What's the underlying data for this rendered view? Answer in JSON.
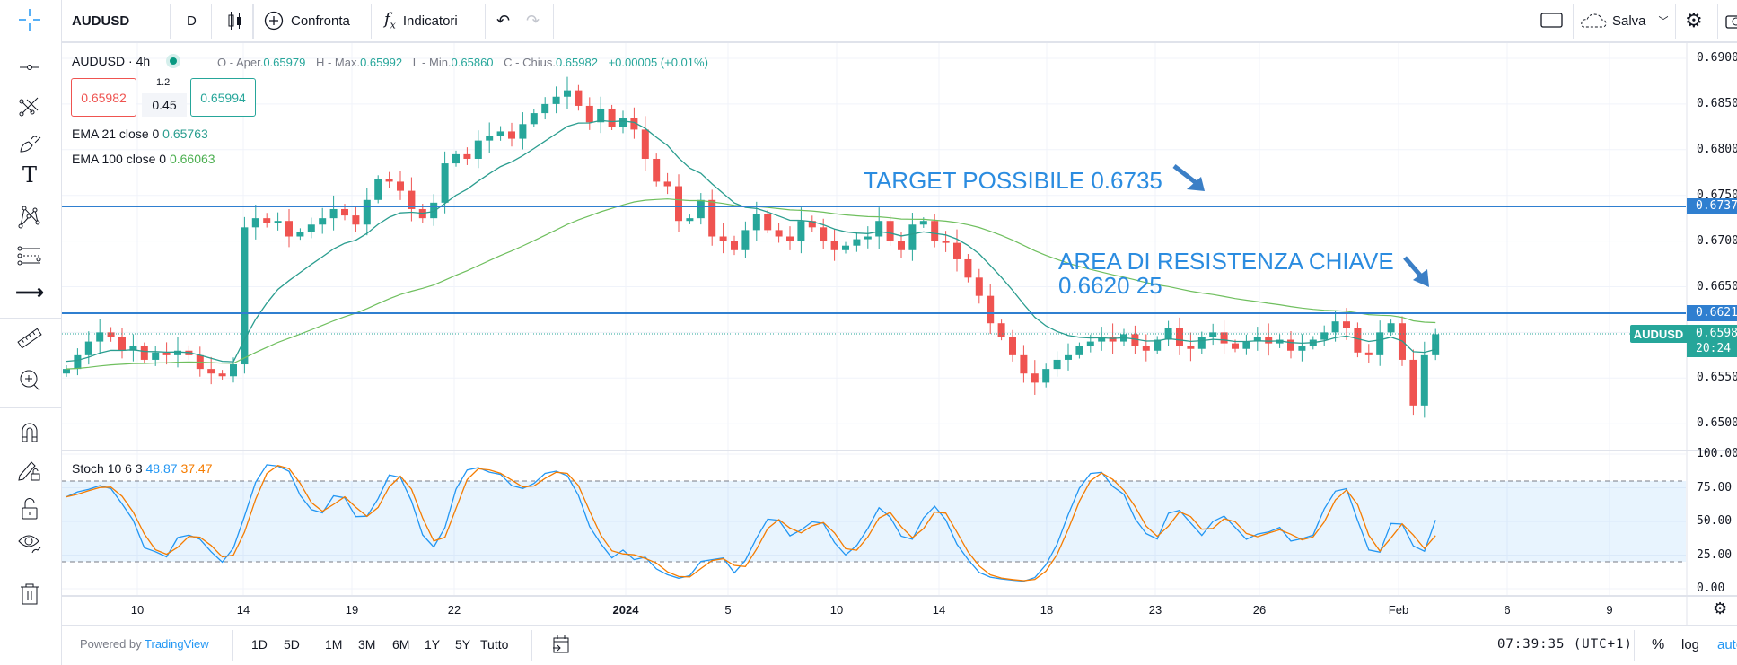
{
  "toolbar": {
    "symbol": "AUDUSD",
    "interval": "D",
    "compare": "Confronta",
    "indicators": "Indicatori",
    "save": "Salva"
  },
  "legend": {
    "symbol": "AUDUSD",
    "sep": "·",
    "timeframe": "4h",
    "o_label": "O - Aper.",
    "o": "0.65979",
    "h_label": "H - Max.",
    "h": "0.65992",
    "l_label": "L - Min.",
    "l": "0.65860",
    "c_label": "C - Chius.",
    "c": "0.65982",
    "change": "+0.00005 (+0.01%)",
    "sell": "0.65982",
    "spread_top": "1.2",
    "spread": "0.45",
    "buy": "0.65994",
    "ema21_label": "EMA 21 close 0",
    "ema21": "0.65763",
    "ema100_label": "EMA 100 close 0",
    "ema100": "0.66063"
  },
  "stoch": {
    "label": "Stoch 10 6 3",
    "k": "48.87",
    "d": "37.47"
  },
  "annotations": {
    "target": "TARGET POSSIBILE 0.6735",
    "resistance_line1": "AREA DI RESISTENZA CHIAVE",
    "resistance_line2": "0.6620 25"
  },
  "price_axis": {
    "ticks": [
      "0.6900",
      "0.6850",
      "0.6800",
      "0.6750",
      "0.6700",
      "0.6650",
      "0.6550",
      "0.6500"
    ],
    "line_target": "0.6737",
    "line_resistance": "0.6621",
    "symbol_tag": "AUDUSD",
    "last_price": "0.6598",
    "countdown": "20:24"
  },
  "stoch_axis": [
    "100.00",
    "75.00",
    "50.00",
    "25.00",
    "0.00"
  ],
  "time_axis": [
    "10",
    "14",
    "19",
    "22",
    "2024",
    "5",
    "10",
    "14",
    "18",
    "23",
    "26",
    "Feb",
    "6",
    "9"
  ],
  "bottom": {
    "powered": "Powered by",
    "brand": "TradingView",
    "ranges": [
      "1D",
      "5D",
      "1M",
      "3M",
      "6M",
      "1Y",
      "5Y",
      "Tutto"
    ],
    "clock": "07:39:35 (UTC+1)",
    "percent": "%",
    "log": "log",
    "auto": "auto"
  },
  "chart_data": {
    "type": "candlestick",
    "symbol": "AUDUSD",
    "interval": "4h",
    "price_range": [
      0.6478,
      0.6905
    ],
    "first_open": 0.6555,
    "closes": [
      0.656,
      0.6575,
      0.659,
      0.66,
      0.6595,
      0.658,
      0.6585,
      0.657,
      0.6578,
      0.6575,
      0.658,
      0.6575,
      0.656,
      0.6555,
      0.6552,
      0.6565,
      0.6715,
      0.6725,
      0.672,
      0.6722,
      0.6705,
      0.671,
      0.6718,
      0.6725,
      0.6735,
      0.6728,
      0.6718,
      0.6745,
      0.6768,
      0.6765,
      0.6755,
      0.6735,
      0.6725,
      0.6742,
      0.6785,
      0.6795,
      0.679,
      0.681,
      0.6815,
      0.682,
      0.6812,
      0.6828,
      0.684,
      0.685,
      0.6858,
      0.6865,
      0.6848,
      0.683,
      0.6845,
      0.6825,
      0.6835,
      0.6822,
      0.679,
      0.6765,
      0.676,
      0.6722,
      0.6725,
      0.6745,
      0.6705,
      0.67,
      0.669,
      0.6712,
      0.673,
      0.6712,
      0.6705,
      0.67,
      0.6722,
      0.6715,
      0.67,
      0.669,
      0.6695,
      0.6702,
      0.6705,
      0.6722,
      0.67,
      0.669,
      0.6718,
      0.6722,
      0.67,
      0.6698,
      0.668,
      0.666,
      0.664,
      0.661,
      0.6595,
      0.6575,
      0.6555,
      0.6545,
      0.656,
      0.657,
      0.6575,
      0.6585,
      0.659,
      0.6595,
      0.659,
      0.6598,
      0.6585,
      0.658,
      0.6592,
      0.6605,
      0.6585,
      0.6582,
      0.6595,
      0.66,
      0.6588,
      0.6582,
      0.659,
      0.6595,
      0.6588,
      0.6592,
      0.658,
      0.6585,
      0.6592,
      0.66,
      0.6612,
      0.6605,
      0.6578,
      0.6575,
      0.66,
      0.661,
      0.657,
      0.652,
      0.6575,
      0.6598
    ],
    "ema_fast_seed": 0.657,
    "ema_slow_seed": 0.656,
    "horizontal_lines": [
      0.6737,
      0.6621
    ],
    "last_price": 0.65982,
    "stoch_bands": [
      20,
      80
    ],
    "colors": {
      "up": "#26a69a",
      "down": "#ef5350",
      "ema21": "#2a9d8f",
      "ema100": "#6fbf5e",
      "hline": "#2f7fd0",
      "stoch_k": "#2196f3",
      "stoch_d": "#f57c00"
    }
  }
}
